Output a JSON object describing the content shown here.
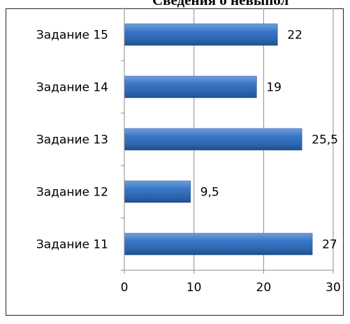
{
  "chart_data": {
    "type": "bar",
    "orientation": "horizontal",
    "title": "Сведения о невыпол",
    "categories": [
      "Задание 15",
      "Задание 14",
      "Задание 13",
      "Задание 12",
      "Задание 11"
    ],
    "values": [
      22,
      19,
      25.5,
      9.5,
      27
    ],
    "value_labels": [
      "22",
      "19",
      "25,5",
      "9,5",
      "27"
    ],
    "xlim": [
      0,
      30
    ],
    "x_ticks": [
      0,
      10,
      20,
      30
    ],
    "x_tick_labels": [
      "0",
      "10",
      "20",
      "30"
    ],
    "grid": true,
    "legend": "none",
    "bar_color": "#2f6ebf"
  }
}
